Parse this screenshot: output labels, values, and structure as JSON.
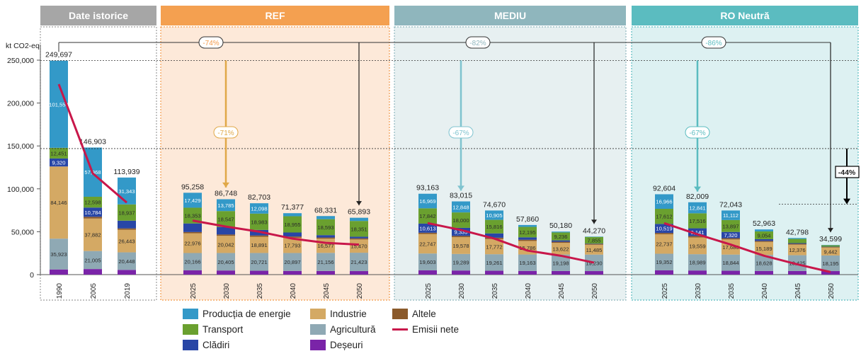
{
  "chart_data": {
    "type": "bar",
    "stacked": true,
    "ylabel": "kt CO2-eq",
    "ylim": [
      0,
      260000
    ],
    "yticks": [
      "0",
      "50,000",
      "100,000",
      "150,000",
      "200,000",
      "250,000"
    ],
    "panels": [
      {
        "title": "Date istorice",
        "color": "#a6a6a6",
        "bg": "#ffffff",
        "border": "#9e9e9e"
      },
      {
        "title": "REF",
        "color": "#f4a050",
        "bg": "#fde9d9",
        "border": "#f39a4b"
      },
      {
        "title": "MEDIU",
        "color": "#8fb6bd",
        "bg": "#e7f0f1",
        "border": "#8fb6bd"
      },
      {
        "title": "RO Neutră",
        "color": "#5bbcc0",
        "bg": "#ddf1f2",
        "border": "#5bbcc0"
      }
    ],
    "series": [
      {
        "name": "Deșeuri",
        "color": "#7a24a8"
      },
      {
        "name": "Agricultură",
        "color": "#8fa9b4"
      },
      {
        "name": "Industrie",
        "color": "#d4a964"
      },
      {
        "name": "Altele",
        "color": "#8b5a2b"
      },
      {
        "name": "Clădiri",
        "color": "#2846a6"
      },
      {
        "name": "Transport",
        "color": "#6aa02f"
      },
      {
        "name": "Producția de energie",
        "color": "#3399c8"
      }
    ],
    "net_series": {
      "name": "Emisii nete",
      "color": "#c8174a"
    },
    "bars": [
      {
        "panel": 0,
        "year": "1990",
        "total": "249,697",
        "net": 222000,
        "values": [
          6000,
          35923,
          84146,
          0,
          9320,
          12451,
          101554
        ],
        "labels": [
          "",
          "35,923",
          "84,146",
          "",
          "9,320",
          "12,451",
          "101,554"
        ]
      },
      {
        "panel": 0,
        "year": "2005",
        "total": "146,903",
        "net": 118000,
        "values": [
          6500,
          21005,
          37882,
          2000,
          10784,
          12598,
          57368
        ],
        "labels": [
          "",
          "21,005",
          "37,882",
          "",
          "10,784",
          "12,598",
          "57,368"
        ]
      },
      {
        "panel": 0,
        "year": "2019",
        "total": "113,939",
        "net": 84000,
        "values": [
          5500,
          20448,
          26443,
          1500,
          9000,
          18937,
          31343
        ],
        "labels": [
          "",
          "20,448",
          "26,443",
          "",
          "",
          "18,937",
          "31,343"
        ]
      },
      {
        "panel": 1,
        "year": "2025",
        "total": "95,258",
        "net": 63000,
        "values": [
          5000,
          20166,
          22976,
          1500,
          10000,
          18353,
          17429
        ],
        "labels": [
          "",
          "20,166",
          "22,976",
          "",
          "",
          "18,353",
          "17,429"
        ]
      },
      {
        "panel": 1,
        "year": "2030",
        "total": "86,748",
        "net": 56000,
        "values": [
          4800,
          20405,
          20042,
          1500,
          8800,
          18547,
          13785
        ],
        "labels": [
          "",
          "20,405",
          "20,042",
          "",
          "",
          "18,547",
          "13,785"
        ]
      },
      {
        "panel": 1,
        "year": "2035",
        "total": "82,703",
        "net": 50000,
        "values": [
          4500,
          20721,
          18891,
          1500,
          6500,
          18983,
          12098
        ],
        "labels": [
          "",
          "20,721",
          "18,891",
          "",
          "",
          "18,983",
          "12,098"
        ]
      },
      {
        "panel": 1,
        "year": "2040",
        "total": "71,377",
        "net": 42000,
        "values": [
          4300,
          20897,
          17793,
          1400,
          4700,
          18955,
          3571
        ],
        "labels": [
          "",
          "20,897",
          "17,793",
          "",
          "",
          "18,955",
          "3,571"
        ]
      },
      {
        "panel": 1,
        "year": "2045",
        "total": "68,331",
        "net": 37000,
        "values": [
          4200,
          21156,
          16577,
          1300,
          2800,
          18593,
          3646
        ],
        "labels": [
          "",
          "21,156",
          "16,577",
          "",
          "",
          "18,593",
          "3,646"
        ]
      },
      {
        "panel": 1,
        "year": "2050",
        "total": "65,893",
        "net": 35000,
        "values": [
          4100,
          21423,
          15470,
          1300,
          1900,
          18351,
          3745
        ],
        "labels": [
          "",
          "21,423",
          "15,470",
          "",
          "",
          "18,351",
          "3,745"
        ]
      },
      {
        "panel": 2,
        "year": "2025",
        "total": "93,163",
        "net": 60000,
        "values": [
          5000,
          19603,
          22747,
          1500,
          10613,
          17842,
          16969
        ],
        "labels": [
          "",
          "19,603",
          "22,747",
          "",
          "10,613",
          "17,842",
          "16,969"
        ]
      },
      {
        "panel": 2,
        "year": "2030",
        "total": "83,015",
        "net": 52000,
        "values": [
          4800,
          19289,
          19578,
          1500,
          9339,
          18000,
          12848
        ],
        "labels": [
          "",
          "19,289",
          "19,578",
          "",
          "9,339",
          "18,000",
          "12,848"
        ]
      },
      {
        "panel": 2,
        "year": "2035",
        "total": "74,670",
        "net": 42000,
        "values": [
          4500,
          19261,
          17772,
          1500,
          5000,
          15816,
          10905
        ],
        "labels": [
          "",
          "19,261",
          "17,772",
          "",
          "",
          "15,816",
          "10,905"
        ]
      },
      {
        "panel": 2,
        "year": "2040",
        "total": "57,860",
        "net": 28000,
        "values": [
          4300,
          19163,
          15786,
          1400,
          2800,
          12195,
          2200
        ],
        "labels": [
          "",
          "19,163",
          "15,786",
          "",
          "",
          "12,195",
          ""
        ]
      },
      {
        "panel": 2,
        "year": "2045",
        "total": "50,180",
        "net": 22000,
        "values": [
          4200,
          19198,
          13622,
          1300,
          1600,
          9236,
          1000
        ],
        "labels": [
          "",
          "19,198",
          "13,622",
          "",
          "",
          "9,236",
          ""
        ]
      },
      {
        "panel": 2,
        "year": "2050",
        "total": "44,270",
        "net": 14000,
        "values": [
          4100,
          19230,
          11485,
          1000,
          400,
          7855,
          200
        ],
        "labels": [
          "",
          "19,230",
          "11,485",
          "",
          "",
          "7,855",
          ""
        ]
      },
      {
        "panel": 3,
        "year": "2025",
        "total": "92,604",
        "net": 60000,
        "values": [
          5000,
          19352,
          22737,
          1500,
          10519,
          17612,
          16966
        ],
        "labels": [
          "",
          "19,352",
          "22,737",
          "",
          "10,519",
          "17,612",
          "16,966"
        ]
      },
      {
        "panel": 3,
        "year": "2030",
        "total": "82,009",
        "net": 47000,
        "values": [
          4800,
          18989,
          19559,
          1500,
          9141,
          17516,
          12841
        ],
        "labels": [
          "",
          "18,989",
          "19,559",
          "",
          "9,141",
          "17,516",
          "12,841"
        ]
      },
      {
        "panel": 3,
        "year": "2035",
        "total": "72,043",
        "net": 35000,
        "values": [
          4500,
          18844,
          17680,
          1400,
          7320,
          13897,
          11112
        ],
        "labels": [
          "",
          "18,844",
          "17,680",
          "",
          "7,320",
          "13,897",
          "11,112"
        ]
      },
      {
        "panel": 3,
        "year": "2040",
        "total": "52,963",
        "net": 22000,
        "values": [
          4300,
          18628,
          15189,
          1200,
          2000,
          9054,
          2300
        ],
        "labels": [
          "",
          "18,628",
          "15,189",
          "",
          "",
          "9,054",
          ""
        ]
      },
      {
        "panel": 3,
        "year": "2045",
        "total": "42,798",
        "net": 12000,
        "values": [
          4200,
          18425,
          12376,
          900,
          800,
          4933,
          1000
        ],
        "labels": [
          "",
          "18,425",
          "12,376",
          "",
          "",
          "4,933",
          ""
        ]
      },
      {
        "panel": 3,
        "year": "2050",
        "total": "34,599",
        "net": 3000,
        "values": [
          4100,
          18195,
          9442,
          500,
          300,
          1700,
          300
        ],
        "labels": [
          "",
          "18,195",
          "9,442",
          "",
          "",
          "",
          ""
        ]
      }
    ],
    "annotations": {
      "top_ref": "-74%",
      "top_mediu": "-82%",
      "top_neutra": "-86%",
      "mid_ref": "-71%",
      "mid_mediu": "-67%",
      "mid_neutra": "-67%",
      "side_neutra": "-44%"
    },
    "legend_order": [
      "Producția de energie",
      "Industrie",
      "Altele",
      "Transport",
      "Agricultură",
      "Emisii nete",
      "Clădiri",
      "Deșeuri"
    ]
  }
}
